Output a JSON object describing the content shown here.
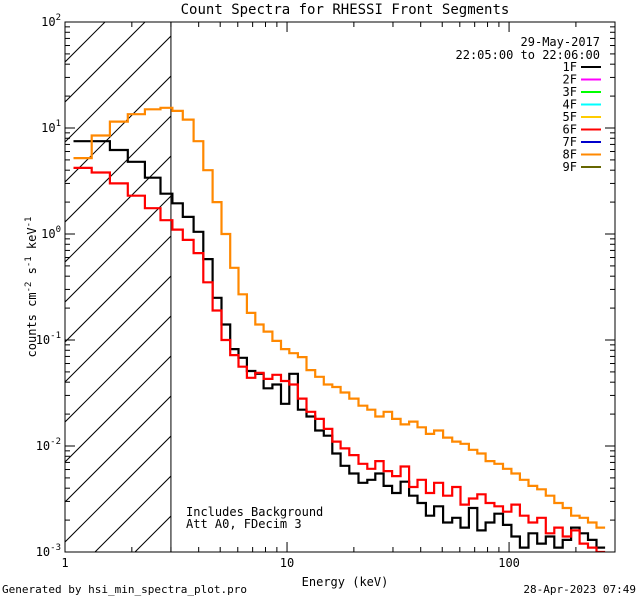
{
  "chart_data": {
    "type": "line",
    "title": "Count Spectra for RHESSI Front Segments",
    "xlabel": "Energy (keV)",
    "ylabel": "counts cm",
    "ylabel_parts": {
      "base": "counts cm",
      "e1": "-2",
      "s": " s",
      "e2": "-1",
      "k": " keV",
      "e3": "-1"
    },
    "xscale": "log",
    "yscale": "log",
    "xlim": [
      1,
      300
    ],
    "ylim": [
      0.001,
      100
    ],
    "x_ticks": [
      {
        "value": 1,
        "label": "1"
      },
      {
        "value": 10,
        "label": "10"
      },
      {
        "value": 100,
        "label": "100"
      }
    ],
    "y_ticks": [
      {
        "value": 0.001,
        "base": "10",
        "exp": "-3"
      },
      {
        "value": 0.01,
        "base": "10",
        "exp": "-2"
      },
      {
        "value": 0.1,
        "base": "10",
        "exp": "-1"
      },
      {
        "value": 1,
        "base": "10",
        "exp": "0"
      },
      {
        "value": 10,
        "base": "10",
        "exp": "1"
      },
      {
        "value": 100,
        "base": "10",
        "exp": "2"
      }
    ],
    "date": "29-May-2017",
    "time_range": "22:05:00 to 22:06:00",
    "hatched_region": {
      "x_from": 1,
      "x_to": 3
    },
    "annotations": [
      "Includes Background",
      "Att A0, FDecim 3"
    ],
    "legend": [
      {
        "label": "1F",
        "color": "#000000"
      },
      {
        "label": "2F",
        "color": "#ff00ff"
      },
      {
        "label": "3F",
        "color": "#00ff00"
      },
      {
        "label": "4F",
        "color": "#00ffff"
      },
      {
        "label": "5F",
        "color": "#ffcc00"
      },
      {
        "label": "6F",
        "color": "#ff0000"
      },
      {
        "label": "7F",
        "color": "#0000cc"
      },
      {
        "label": "8F",
        "color": "#ff8800"
      },
      {
        "label": "9F",
        "color": "#666600"
      }
    ],
    "series": [
      {
        "name": "1F",
        "color": "#000000",
        "points": [
          [
            1.2,
            7.5
          ],
          [
            1.45,
            7.5
          ],
          [
            1.75,
            6.2
          ],
          [
            2.1,
            4.8
          ],
          [
            2.5,
            3.4
          ],
          [
            2.9,
            2.4
          ],
          [
            3.2,
            1.95
          ],
          [
            3.6,
            1.45
          ],
          [
            4.0,
            1.05
          ],
          [
            4.4,
            0.58
          ],
          [
            4.85,
            0.25
          ],
          [
            5.3,
            0.14
          ],
          [
            5.8,
            0.082
          ],
          [
            6.3,
            0.068
          ],
          [
            6.9,
            0.051
          ],
          [
            7.5,
            0.048
          ],
          [
            8.2,
            0.035
          ],
          [
            9.0,
            0.038
          ],
          [
            9.8,
            0.025
          ],
          [
            10.7,
            0.048
          ],
          [
            11.7,
            0.022
          ],
          [
            12.8,
            0.019
          ],
          [
            14.0,
            0.014
          ],
          [
            15.3,
            0.0125
          ],
          [
            16.7,
            0.0085
          ],
          [
            18.2,
            0.0065
          ],
          [
            20.0,
            0.0055
          ],
          [
            22,
            0.0045
          ],
          [
            24,
            0.0048
          ],
          [
            26,
            0.0055
          ],
          [
            28.5,
            0.0042
          ],
          [
            31,
            0.0036
          ],
          [
            34,
            0.0046
          ],
          [
            37,
            0.0034
          ],
          [
            40.5,
            0.0029
          ],
          [
            44,
            0.0022
          ],
          [
            48,
            0.0027
          ],
          [
            53,
            0.0019
          ],
          [
            58,
            0.0021
          ],
          [
            63,
            0.0017
          ],
          [
            69,
            0.0026
          ],
          [
            75,
            0.0016
          ],
          [
            82,
            0.0019
          ],
          [
            90,
            0.0023
          ],
          [
            98,
            0.0018
          ],
          [
            107,
            0.0014
          ],
          [
            117,
            0.0011
          ],
          [
            128,
            0.0015
          ],
          [
            140,
            0.0012
          ],
          [
            153,
            0.0014
          ],
          [
            167,
            0.0011
          ],
          [
            182,
            0.0013
          ],
          [
            199,
            0.0017
          ],
          [
            217,
            0.0015
          ],
          [
            237,
            0.0013
          ],
          [
            259,
            0.0011
          ]
        ]
      },
      {
        "name": "6F",
        "color": "#ff0000",
        "points": [
          [
            1.2,
            4.2
          ],
          [
            1.45,
            3.8
          ],
          [
            1.75,
            3.0
          ],
          [
            2.1,
            2.3
          ],
          [
            2.5,
            1.75
          ],
          [
            2.9,
            1.35
          ],
          [
            3.2,
            1.1
          ],
          [
            3.6,
            0.88
          ],
          [
            4.0,
            0.66
          ],
          [
            4.4,
            0.35
          ],
          [
            4.85,
            0.19
          ],
          [
            5.3,
            0.1
          ],
          [
            5.8,
            0.072
          ],
          [
            6.3,
            0.056
          ],
          [
            6.9,
            0.044
          ],
          [
            7.5,
            0.049
          ],
          [
            8.2,
            0.043
          ],
          [
            9.0,
            0.047
          ],
          [
            9.8,
            0.041
          ],
          [
            10.7,
            0.038
          ],
          [
            11.7,
            0.028
          ],
          [
            12.8,
            0.021
          ],
          [
            14.0,
            0.018
          ],
          [
            15.3,
            0.0145
          ],
          [
            16.7,
            0.011
          ],
          [
            18.2,
            0.0095
          ],
          [
            20.0,
            0.0082
          ],
          [
            22,
            0.0068
          ],
          [
            24,
            0.0061
          ],
          [
            26,
            0.0072
          ],
          [
            28.5,
            0.0058
          ],
          [
            31,
            0.0052
          ],
          [
            34,
            0.0064
          ],
          [
            37,
            0.0041
          ],
          [
            40.5,
            0.0048
          ],
          [
            44,
            0.0036
          ],
          [
            48,
            0.0045
          ],
          [
            53,
            0.0034
          ],
          [
            58,
            0.0041
          ],
          [
            63,
            0.0028
          ],
          [
            69,
            0.0032
          ],
          [
            75,
            0.0035
          ],
          [
            82,
            0.0029
          ],
          [
            90,
            0.0027
          ],
          [
            98,
            0.0024
          ],
          [
            107,
            0.0028
          ],
          [
            117,
            0.0022
          ],
          [
            128,
            0.0019
          ],
          [
            140,
            0.0021
          ],
          [
            153,
            0.0015
          ],
          [
            167,
            0.0017
          ],
          [
            182,
            0.0014
          ],
          [
            199,
            0.0016
          ],
          [
            217,
            0.0012
          ],
          [
            237,
            0.0011
          ],
          [
            259,
            0.001
          ]
        ]
      },
      {
        "name": "8F",
        "color": "#ff8800",
        "points": [
          [
            1.2,
            5.2
          ],
          [
            1.45,
            8.5
          ],
          [
            1.75,
            11.5
          ],
          [
            2.1,
            13.5
          ],
          [
            2.5,
            15.0
          ],
          [
            2.9,
            15.5
          ],
          [
            3.2,
            14.5
          ],
          [
            3.6,
            12.0
          ],
          [
            4.0,
            7.5
          ],
          [
            4.4,
            4.0
          ],
          [
            4.85,
            2.0
          ],
          [
            5.3,
            1.0
          ],
          [
            5.8,
            0.48
          ],
          [
            6.3,
            0.27
          ],
          [
            6.9,
            0.18
          ],
          [
            7.5,
            0.14
          ],
          [
            8.2,
            0.12
          ],
          [
            9.0,
            0.098
          ],
          [
            9.8,
            0.082
          ],
          [
            10.7,
            0.075
          ],
          [
            11.7,
            0.069
          ],
          [
            12.8,
            0.052
          ],
          [
            14.0,
            0.045
          ],
          [
            15.3,
            0.038
          ],
          [
            16.7,
            0.036
          ],
          [
            18.2,
            0.032
          ],
          [
            20.0,
            0.028
          ],
          [
            22,
            0.024
          ],
          [
            24,
            0.022
          ],
          [
            26,
            0.019
          ],
          [
            28.5,
            0.021
          ],
          [
            31,
            0.018
          ],
          [
            34,
            0.016
          ],
          [
            37,
            0.017
          ],
          [
            40.5,
            0.015
          ],
          [
            44,
            0.013
          ],
          [
            48,
            0.014
          ],
          [
            53,
            0.012
          ],
          [
            58,
            0.011
          ],
          [
            63,
            0.0105
          ],
          [
            69,
            0.0092
          ],
          [
            75,
            0.0085
          ],
          [
            82,
            0.0072
          ],
          [
            90,
            0.0068
          ],
          [
            98,
            0.0061
          ],
          [
            107,
            0.0055
          ],
          [
            117,
            0.0048
          ],
          [
            128,
            0.0042
          ],
          [
            140,
            0.0039
          ],
          [
            153,
            0.0034
          ],
          [
            167,
            0.0029
          ],
          [
            182,
            0.0026
          ],
          [
            199,
            0.0022
          ],
          [
            217,
            0.0021
          ],
          [
            237,
            0.0019
          ],
          [
            259,
            0.0017
          ]
        ]
      }
    ]
  },
  "footer": {
    "left": "Generated by hsi_min_spectra_plot.pro",
    "right": "28-Apr-2023 07:49"
  }
}
